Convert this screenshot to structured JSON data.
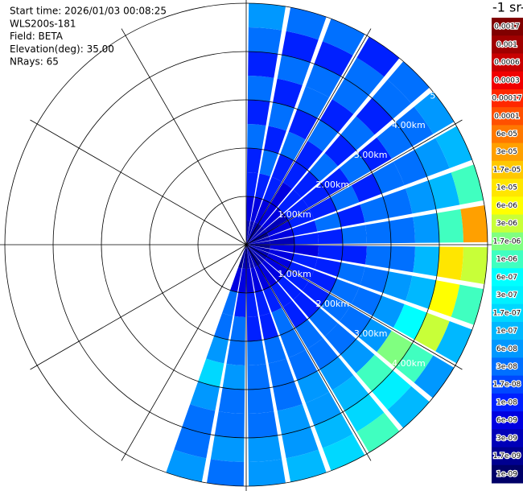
{
  "chart_data": {
    "type": "ppi",
    "info": [
      "Start time: 2026/01/03 00:08:25",
      "WLS200s-181",
      "Field: BETA",
      "Elevation(deg): 35.00",
      "NRays: 65"
    ],
    "colorbar_title": "-1 sr-",
    "rlim": [
      0,
      5.1
    ],
    "rticks": [
      {
        "value": 1,
        "label": "1.00km"
      },
      {
        "value": 2,
        "label": "2.00km"
      },
      {
        "value": 3,
        "label": "3.00km"
      },
      {
        "value": 4,
        "label": "4.00km"
      },
      5
    ],
    "colorbar": {
      "ticks": [
        0.0017,
        0.001,
        0.0006,
        0.0003,
        0.00017,
        0.0001,
        {
          "value": 6e-05,
          "label": "6e-05"
        },
        {
          "value": 3e-05,
          "label": "3e-05"
        },
        {
          "value": 1.7e-05,
          "label": "1.7e-05"
        },
        {
          "value": 1e-05,
          "label": "1e-05"
        },
        {
          "value": 6e-06,
          "label": "6e-06"
        },
        {
          "value": 3e-06,
          "label": "3e-06"
        },
        {
          "value": 1.7e-06,
          "label": "1.7e-06"
        },
        {
          "value": 1e-06,
          "label": "1e-06"
        },
        {
          "value": 6e-07,
          "label": "6e-07"
        },
        {
          "value": 3e-07,
          "label": "3e-07"
        },
        {
          "value": 1.7e-07,
          "label": "1.7e-07"
        },
        {
          "value": 1e-07,
          "label": "1e-07"
        },
        {
          "value": 6e-08,
          "label": "6e-08"
        },
        {
          "value": 3e-08,
          "label": "3e-08"
        },
        {
          "value": 1.7e-08,
          "label": "1.7e-08"
        },
        {
          "value": 1e-08,
          "label": "1e-08"
        },
        {
          "value": 6e-09,
          "label": "6e-09"
        },
        {
          "value": 3e-09,
          "label": "3e-09"
        },
        {
          "value": 1.7e-09,
          "label": "1.7e-09"
        },
        {
          "value": 1e-09,
          "label": "1e-09"
        }
      ],
      "colors": [
        "#800000",
        "#a00000",
        "#c80000",
        "#f00000",
        "#ff2800",
        "#ff5000",
        "#ff7800",
        "#ffa000",
        "#ffc800",
        "#ffe600",
        "#ffff00",
        "#c8ff38",
        "#80ff80",
        "#40ffc0",
        "#00ffff",
        "#00f0ff",
        "#00d8ff",
        "#00b8ff",
        "#0098ff",
        "#0070ff",
        "#0048ff",
        "#0020ff",
        "#0000e0",
        "#0000b8",
        "#000090",
        "#000068"
      ]
    },
    "azimuth_edges_deg": [
      0,
      10,
      20,
      30,
      40,
      50,
      60,
      70,
      80,
      90,
      100,
      110,
      120,
      130,
      140,
      150,
      160,
      170,
      180,
      190,
      200
    ],
    "range_edges_km": [
      0,
      0.5,
      1,
      1.5,
      2,
      2.5,
      3,
      3.5,
      4,
      4.5,
      5
    ],
    "field": [
      [
        3e-09,
        6e-09,
        1e-08,
        1e-08,
        3e-08,
        1e-08,
        3e-08,
        1e-08,
        3e-08,
        6e-08
      ],
      [
        3e-09,
        6e-09,
        1e-08,
        3e-08,
        1e-08,
        3e-08,
        1e-08,
        3e-08,
        1e-08,
        3e-08
      ],
      [
        3e-09,
        6e-09,
        1e-08,
        1e-08,
        3e-08,
        1e-08,
        3e-08,
        3e-08,
        1e-08,
        3e-08
      ],
      [
        1.7e-09,
        6e-09,
        6e-09,
        1e-08,
        1e-08,
        3e-08,
        1e-08,
        3e-08,
        3e-08,
        1e-08
      ],
      [
        3e-09,
        6e-09,
        1e-08,
        1e-08,
        3e-08,
        1e-08,
        3e-08,
        1e-08,
        3e-08,
        3e-08
      ],
      [
        3e-09,
        3e-09,
        1e-08,
        1e-08,
        1e-08,
        3e-08,
        1e-08,
        3e-08,
        3e-08,
        6e-08
      ],
      [
        1.7e-09,
        6e-09,
        1e-08,
        1e-08,
        3e-08,
        1e-08,
        3e-08,
        3e-08,
        6e-08,
        1e-07
      ],
      [
        3e-09,
        6e-09,
        1e-08,
        3e-08,
        1e-08,
        3e-08,
        3e-08,
        6e-08,
        1e-07,
        1e-06
      ],
      [
        3e-09,
        3e-09,
        1e-08,
        1e-08,
        3e-08,
        3e-08,
        3e-08,
        6e-08,
        1e-06,
        3e-05
      ],
      [
        1.7e-09,
        6e-09,
        6e-09,
        1e-08,
        1e-08,
        3e-08,
        3e-08,
        1e-07,
        1e-05,
        3e-06
      ],
      [
        3e-09,
        6e-09,
        1e-08,
        1e-08,
        3e-08,
        3e-08,
        6e-08,
        1e-07,
        6e-06,
        1e-06
      ],
      [
        3e-09,
        6e-09,
        1e-08,
        1e-08,
        3e-08,
        3e-08,
        6e-08,
        6e-07,
        3e-06,
        1e-07
      ],
      [
        3e-09,
        6e-09,
        1e-08,
        1e-08,
        3e-08,
        3e-08,
        6e-08,
        1.7e-06,
        1e-06,
        6e-08
      ],
      [
        3e-09,
        6e-09,
        1e-08,
        1e-08,
        3e-08,
        3e-08,
        6e-08,
        1e-06,
        3e-07,
        1e-07
      ],
      [
        1.7e-09,
        6e-09,
        1e-08,
        1e-08,
        3e-08,
        3e-08,
        6e-08,
        1e-07,
        1.7e-07,
        1e-06
      ],
      [
        3e-09,
        6e-09,
        1e-08,
        3e-08,
        3e-08,
        3e-08,
        6e-08,
        6e-08,
        1e-07,
        1.7e-07
      ],
      [
        3e-09,
        6e-09,
        1e-08,
        1e-08,
        3e-08,
        3e-08,
        3e-08,
        6e-08,
        6e-08,
        1e-07
      ],
      [
        3e-09,
        6e-09,
        1e-08,
        1e-08,
        3e-08,
        3e-08,
        3e-08,
        3e-08,
        6e-08,
        6e-08
      ],
      [
        3e-09,
        6e-09,
        1e-08,
        3e-08,
        3e-08,
        6e-08,
        3e-08,
        3e-08,
        6e-08,
        3e-08
      ],
      [
        1.7e-09,
        6e-09,
        3e-08,
        3e-08,
        6e-08,
        1.7e-07,
        6e-08,
        3e-08,
        3e-08,
        6e-08
      ]
    ]
  }
}
